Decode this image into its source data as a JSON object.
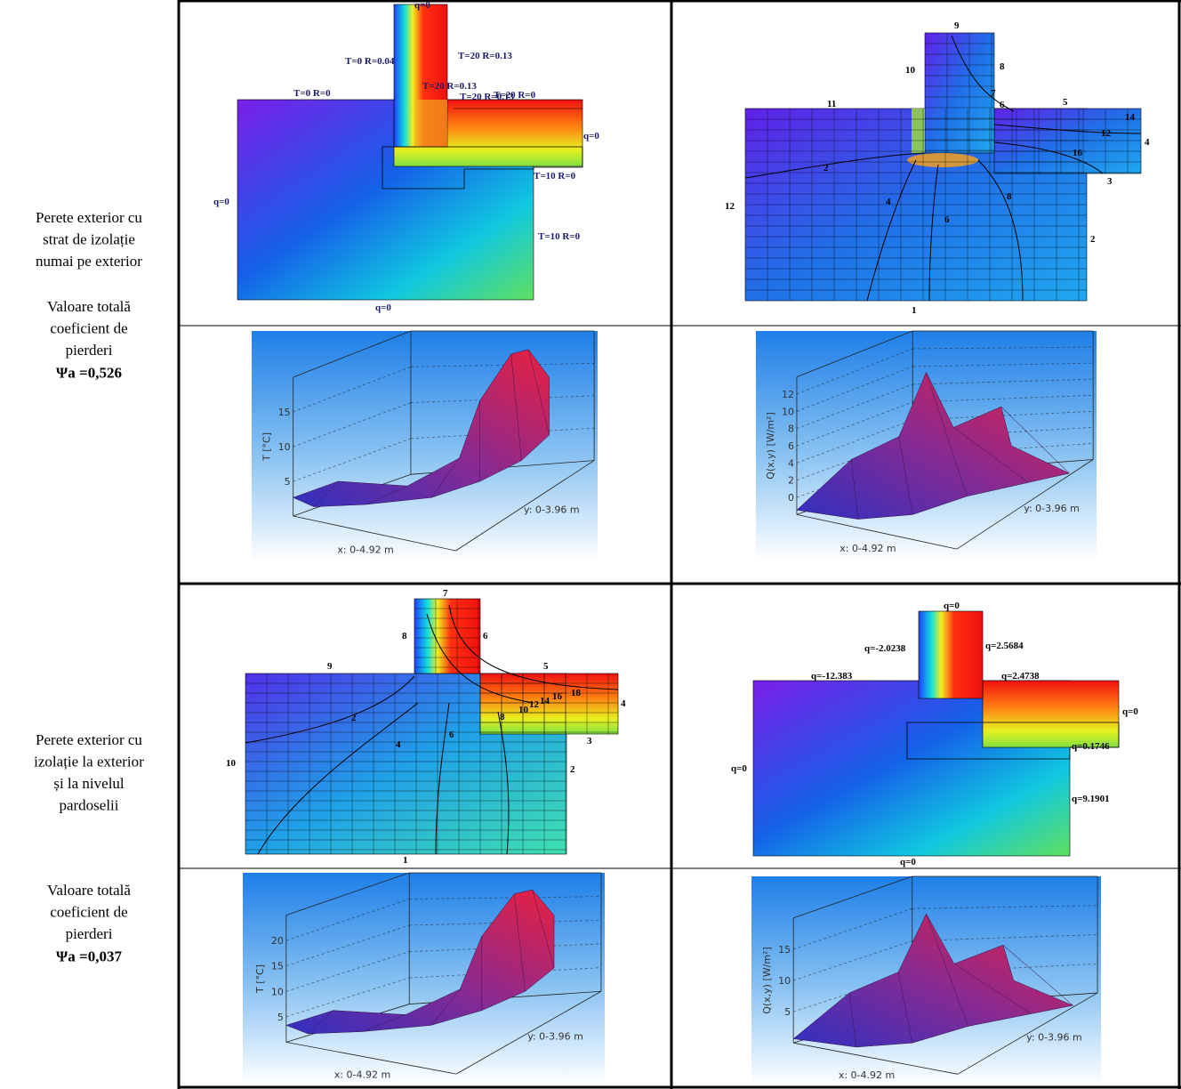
{
  "table": {
    "rows": [
      {
        "description": [
          "Perete exterior cu",
          "strat de izolație",
          "numai pe exterior"
        ],
        "coefficient_caption": [
          "Valoare totală",
          "coeficient de",
          "pierderi"
        ],
        "coefficient": "Ψa =0,526",
        "boundary_map": {
          "labels": [
            "q=0",
            "T=0 R=0.04",
            "T=20 R=0.13",
            "T=0 R=0",
            "T=20 R=0.13",
            "T=20 R=0.13",
            "T=20 R=0",
            "q=0",
            "T=10 R=0",
            "q=0",
            "T=10 R=0",
            "q=0"
          ]
        },
        "isotherm_map": {
          "labels": [
            "9",
            "10",
            "8",
            "11",
            "7",
            "6",
            "5",
            "14",
            "12",
            "4",
            "16",
            "2",
            "3",
            "12",
            "4",
            "6",
            "8",
            "2",
            "1"
          ]
        },
        "temperature_plot": {
          "z_label": "T [°C]",
          "z_ticks": [
            "5",
            "10",
            "15"
          ],
          "x_label": "x: 0-4.92 m",
          "y_label": "y: 0-3.96 m"
        },
        "flux_plot": {
          "z_label": "Q(x,y) [W/m²]",
          "z_ticks": [
            "0",
            "2",
            "4",
            "6",
            "8",
            "10",
            "12"
          ],
          "x_label": "x: 0-4.92 m",
          "y_label": "y: 0-3.96 m"
        }
      },
      {
        "description": [
          "Perete exterior cu",
          "izolație la exterior",
          "și la nivelul",
          "pardoselii"
        ],
        "coefficient_caption": [
          "Valoare totală",
          "coeficient de",
          "pierderi"
        ],
        "coefficient": "Ψa =0,037",
        "isotherm_map": {
          "labels": [
            "7",
            "8",
            "6",
            "9",
            "5",
            "4",
            "18",
            "16",
            "14",
            "12",
            "10",
            "8",
            "6",
            "4",
            "2",
            "3",
            "10",
            "2",
            "1"
          ]
        },
        "flux_map": {
          "labels": [
            "q=0",
            "q=-2.0238",
            "q=2.5684",
            "q=-12.383",
            "q=2.4738",
            "q=0",
            "q=0.1746",
            "q=0",
            "q=9.1901",
            "q=0"
          ]
        },
        "temperature_plot": {
          "z_label": "T [°C]",
          "z_ticks": [
            "5",
            "10",
            "15",
            "20"
          ],
          "x_label": "x: 0-4.92 m",
          "y_label": "y: 0-3.96 m"
        },
        "flux_plot": {
          "z_label": "Q(x,y) [W/m²]",
          "z_ticks": [
            "5",
            "10",
            "15"
          ],
          "x_label": "x: 0-4.92 m",
          "y_label": "y: 0-3.96 m"
        }
      }
    ]
  }
}
